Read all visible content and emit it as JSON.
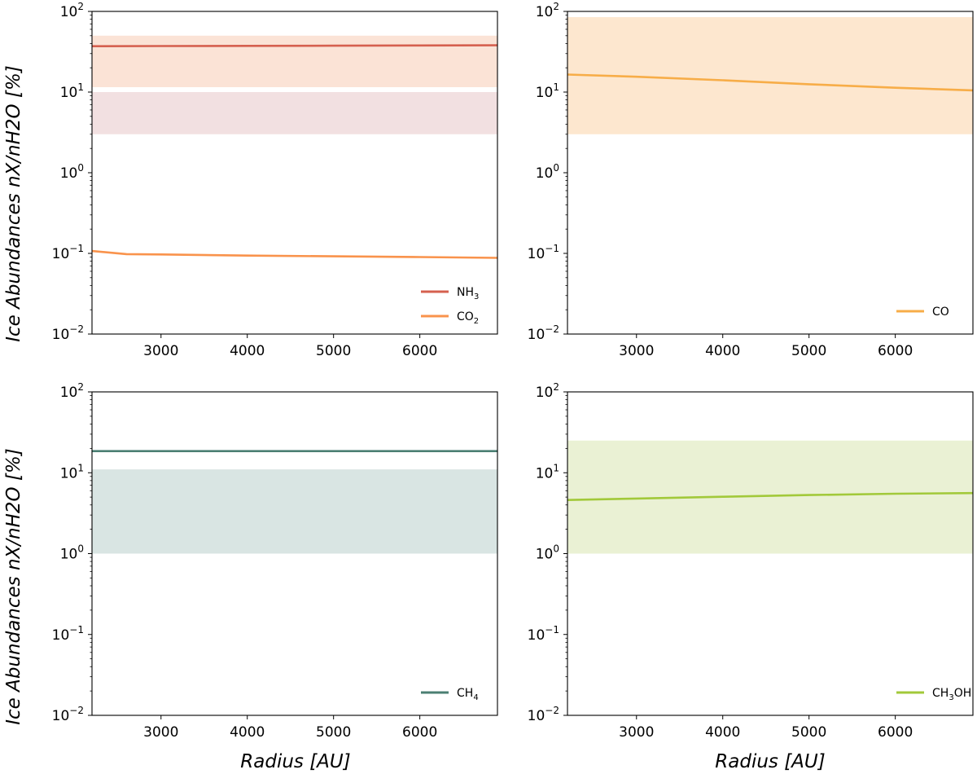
{
  "figure": {
    "ylabel": "Ice Abundances nX/nH2O [%]",
    "xlabel": "Radius [AU]"
  },
  "chart_data": [
    {
      "type": "line",
      "panel": "top-left",
      "xlim": [
        2200,
        6900
      ],
      "ylim": [
        0.01,
        100
      ],
      "yscale": "log",
      "xticks": [
        3000,
        4000,
        5000,
        6000
      ],
      "yticks": [
        {
          "v": 0.01,
          "m": "10",
          "e": "−2"
        },
        {
          "v": 0.1,
          "m": "10",
          "e": "−1"
        },
        {
          "v": 1,
          "m": "10",
          "e": "0"
        },
        {
          "v": 10,
          "m": "10",
          "e": "1"
        },
        {
          "v": 100,
          "m": "10",
          "e": "2"
        }
      ],
      "legend": "bottom-right",
      "bands": [
        {
          "color": "#f8c8ad",
          "opacity": 0.5,
          "ymin": 11.5,
          "ymax": 50
        },
        {
          "color": "#dba6a8",
          "opacity": 0.35,
          "ymin": 3,
          "ymax": 10
        }
      ],
      "series": [
        {
          "name": "NH3",
          "label_main": "NH",
          "label_sub": "3",
          "label_rest": "",
          "color": "#d5604f",
          "x": [
            2200,
            3000,
            4000,
            5000,
            6000,
            6900
          ],
          "y": [
            37,
            37.2,
            37.4,
            37.6,
            37.8,
            38
          ]
        },
        {
          "name": "CO2",
          "label_main": "CO",
          "label_sub": "2",
          "label_rest": "",
          "color": "#f9934c",
          "x": [
            2200,
            2600,
            3000,
            4000,
            5000,
            6000,
            6900
          ],
          "y": [
            0.107,
            0.098,
            0.097,
            0.094,
            0.092,
            0.09,
            0.088
          ]
        }
      ]
    },
    {
      "type": "line",
      "panel": "top-right",
      "xlim": [
        2200,
        6900
      ],
      "ylim": [
        0.01,
        100
      ],
      "yscale": "log",
      "xticks": [
        3000,
        4000,
        5000,
        6000
      ],
      "yticks": [
        {
          "v": 0.01,
          "m": "10",
          "e": "−2"
        },
        {
          "v": 0.1,
          "m": "10",
          "e": "−1"
        },
        {
          "v": 1,
          "m": "10",
          "e": "0"
        },
        {
          "v": 10,
          "m": "10",
          "e": "1"
        },
        {
          "v": 100,
          "m": "10",
          "e": "2"
        }
      ],
      "legend": "bottom-right",
      "bands": [
        {
          "color": "#fbd3a8",
          "opacity": 0.55,
          "ymin": 3,
          "ymax": 85
        }
      ],
      "series": [
        {
          "name": "CO",
          "label_main": "CO",
          "label_sub": "",
          "label_rest": "",
          "color": "#f7ad48",
          "x": [
            2200,
            3000,
            4000,
            5000,
            6000,
            6900
          ],
          "y": [
            16.5,
            15.5,
            14,
            12.5,
            11.3,
            10.5
          ]
        }
      ]
    },
    {
      "type": "line",
      "panel": "bottom-left",
      "xlim": [
        2200,
        6900
      ],
      "ylim": [
        0.01,
        100
      ],
      "yscale": "log",
      "xticks": [
        3000,
        4000,
        5000,
        6000
      ],
      "yticks": [
        {
          "v": 0.01,
          "m": "10",
          "e": "−2"
        },
        {
          "v": 0.1,
          "m": "10",
          "e": "−1"
        },
        {
          "v": 1,
          "m": "10",
          "e": "0"
        },
        {
          "v": 10,
          "m": "10",
          "e": "1"
        },
        {
          "v": 100,
          "m": "10",
          "e": "2"
        }
      ],
      "legend": "bottom-right",
      "bands": [
        {
          "color": "#b3cbc7",
          "opacity": 0.5,
          "ymin": 1,
          "ymax": 11
        }
      ],
      "series": [
        {
          "name": "CH4",
          "label_main": "CH",
          "label_sub": "4",
          "label_rest": "",
          "color": "#4b7f73",
          "x": [
            2200,
            3000,
            4000,
            5000,
            6000,
            6900
          ],
          "y": [
            18.5,
            18.5,
            18.5,
            18.5,
            18.5,
            18.5
          ]
        }
      ]
    },
    {
      "type": "line",
      "panel": "bottom-right",
      "xlim": [
        2200,
        6900
      ],
      "ylim": [
        0.01,
        100
      ],
      "yscale": "log",
      "xticks": [
        3000,
        4000,
        5000,
        6000
      ],
      "yticks": [
        {
          "v": 0.01,
          "m": "10",
          "e": "−2"
        },
        {
          "v": 0.1,
          "m": "10",
          "e": "−1"
        },
        {
          "v": 1,
          "m": "10",
          "e": "0"
        },
        {
          "v": 10,
          "m": "10",
          "e": "1"
        },
        {
          "v": 100,
          "m": "10",
          "e": "2"
        }
      ],
      "legend": "bottom-right",
      "bands": [
        {
          "color": "#d8e6b0",
          "opacity": 0.55,
          "ymin": 1,
          "ymax": 25
        }
      ],
      "series": [
        {
          "name": "CH3OH",
          "label_main": "CH",
          "label_sub": "3",
          "label_rest": "OH",
          "color": "#a2c93a",
          "x": [
            2200,
            3000,
            4000,
            5000,
            6000,
            6900
          ],
          "y": [
            4.6,
            4.8,
            5.05,
            5.3,
            5.5,
            5.6
          ]
        }
      ]
    }
  ]
}
